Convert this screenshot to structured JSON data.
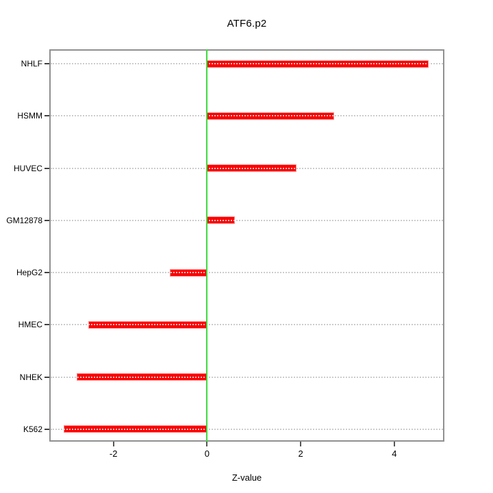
{
  "title": "ATF6.p2",
  "xlabel": "Z-value",
  "colors": {
    "bar": "#ff0000",
    "bar_border": "#ff8f8f",
    "zero_line": "#3ddc3d",
    "grid": "#cccccc",
    "frame": "#909090",
    "text": "#000000",
    "background": "#ffffff"
  },
  "chart_data": {
    "type": "bar",
    "orientation": "horizontal",
    "title": "ATF6.p2",
    "xlabel": "Z-value",
    "ylabel": "",
    "categories": [
      "NHLF",
      "HSMM",
      "HUVEC",
      "GM12878",
      "HepG2",
      "HMEC",
      "NHEK",
      "K562"
    ],
    "values": [
      4.74,
      2.72,
      1.91,
      0.59,
      -0.79,
      -2.53,
      -2.78,
      -3.06
    ],
    "xlim": [
      -3.37,
      5.07
    ],
    "xticks": [
      -2,
      0,
      2,
      4
    ],
    "zero_line_at": 0,
    "grid": "dotted horizontal per category",
    "legend": "none",
    "category_order": "top to bottom"
  }
}
